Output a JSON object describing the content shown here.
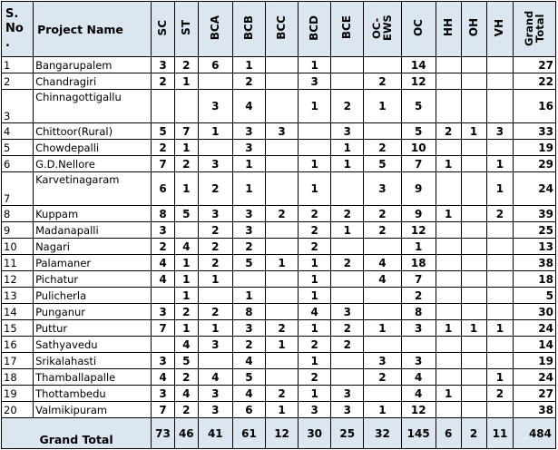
{
  "table": {
    "headers": {
      "sno": "S. No .",
      "name": "Project Name",
      "cols": [
        "SC",
        "ST",
        "BCA",
        "BCB",
        "BCC",
        "BCD",
        "BCE",
        "OC-EWS",
        "OC",
        "HH",
        "OH",
        "VH",
        "Grand Total"
      ]
    },
    "rows": [
      {
        "sno": "1",
        "name": "Bangarupalem",
        "vals": [
          "3",
          "2",
          "6",
          "1",
          "",
          "1",
          "",
          "",
          "14",
          "",
          "",
          "",
          "27"
        ]
      },
      {
        "sno": "2",
        "name": "Chandragiri",
        "vals": [
          "2",
          "1",
          "",
          "2",
          "",
          "3",
          "",
          "2",
          "12",
          "",
          "",
          "",
          "22"
        ]
      },
      {
        "sno": "3",
        "name": "Chinnagottigallu",
        "vals": [
          "",
          "",
          "3",
          "4",
          "",
          "1",
          "2",
          "1",
          "5",
          "",
          "",
          "",
          "16"
        ]
      },
      {
        "sno": "4",
        "name": "Chittoor(Rural)",
        "vals": [
          "5",
          "7",
          "1",
          "3",
          "3",
          "",
          "3",
          "",
          "5",
          "2",
          "1",
          "3",
          "33"
        ]
      },
      {
        "sno": "5",
        "name": "Chowdepalli",
        "vals": [
          "2",
          "1",
          "",
          "3",
          "",
          "",
          "1",
          "2",
          "10",
          "",
          "",
          "",
          "19"
        ]
      },
      {
        "sno": "6",
        "name": "G.D.Nellore",
        "vals": [
          "7",
          "2",
          "3",
          "1",
          "",
          "1",
          "1",
          "5",
          "7",
          "1",
          "",
          "1",
          "29"
        ]
      },
      {
        "sno": "7",
        "name": "Karvetinagaram",
        "vals": [
          "6",
          "1",
          "2",
          "1",
          "",
          "1",
          "",
          "3",
          "9",
          "",
          "",
          "1",
          "24"
        ]
      },
      {
        "sno": "8",
        "name": "Kuppam",
        "vals": [
          "8",
          "5",
          "3",
          "3",
          "2",
          "2",
          "2",
          "2",
          "9",
          "1",
          "",
          "2",
          "39"
        ]
      },
      {
        "sno": "9",
        "name": "Madanapalli",
        "vals": [
          "3",
          "",
          "2",
          "3",
          "",
          "2",
          "1",
          "2",
          "12",
          "",
          "",
          "",
          "25"
        ]
      },
      {
        "sno": "10",
        "name": "Nagari",
        "vals": [
          "2",
          "4",
          "2",
          "2",
          "",
          "2",
          "",
          "",
          "1",
          "",
          "",
          "",
          "13"
        ]
      },
      {
        "sno": "11",
        "name": "Palamaner",
        "vals": [
          "4",
          "1",
          "2",
          "5",
          "1",
          "1",
          "2",
          "4",
          "18",
          "",
          "",
          "",
          "38"
        ]
      },
      {
        "sno": "12",
        "name": "Pichatur",
        "vals": [
          "4",
          "1",
          "1",
          "",
          "",
          "1",
          "",
          "4",
          "7",
          "",
          "",
          "",
          "18"
        ]
      },
      {
        "sno": "13",
        "name": "Pulicherla",
        "vals": [
          "",
          "1",
          "",
          "1",
          "",
          "1",
          "",
          "",
          "2",
          "",
          "",
          "",
          "5"
        ]
      },
      {
        "sno": "14",
        "name": "Punganur",
        "vals": [
          "3",
          "2",
          "2",
          "8",
          "",
          "4",
          "3",
          "",
          "8",
          "",
          "",
          "",
          "30"
        ]
      },
      {
        "sno": "15",
        "name": "Puttur",
        "vals": [
          "7",
          "1",
          "1",
          "3",
          "2",
          "1",
          "2",
          "1",
          "3",
          "1",
          "1",
          "1",
          "24"
        ]
      },
      {
        "sno": "16",
        "name": "Sathyavedu",
        "vals": [
          "",
          "4",
          "3",
          "2",
          "1",
          "2",
          "2",
          "",
          "",
          "",
          "",
          "",
          "14"
        ]
      },
      {
        "sno": "17",
        "name": "Srikalahasti",
        "vals": [
          "3",
          "5",
          "",
          "4",
          "",
          "1",
          "",
          "3",
          "3",
          "",
          "",
          "",
          "19"
        ]
      },
      {
        "sno": "18",
        "name": "Thamballapalle",
        "vals": [
          "4",
          "2",
          "4",
          "5",
          "",
          "2",
          "",
          "2",
          "4",
          "",
          "",
          "1",
          "24"
        ]
      },
      {
        "sno": "19",
        "name": "Thottambedu",
        "vals": [
          "3",
          "4",
          "3",
          "4",
          "2",
          "1",
          "3",
          "",
          "4",
          "1",
          "",
          "2",
          "27"
        ]
      },
      {
        "sno": "20",
        "name": "Valmikipuram",
        "vals": [
          "7",
          "2",
          "3",
          "6",
          "1",
          "3",
          "3",
          "1",
          "12",
          "",
          "",
          "",
          "38"
        ]
      }
    ],
    "footer": {
      "label": "Grand Total",
      "vals": [
        "73",
        "46",
        "41",
        "61",
        "12",
        "30",
        "25",
        "32",
        "145",
        "6",
        "2",
        "11",
        "484"
      ]
    }
  }
}
